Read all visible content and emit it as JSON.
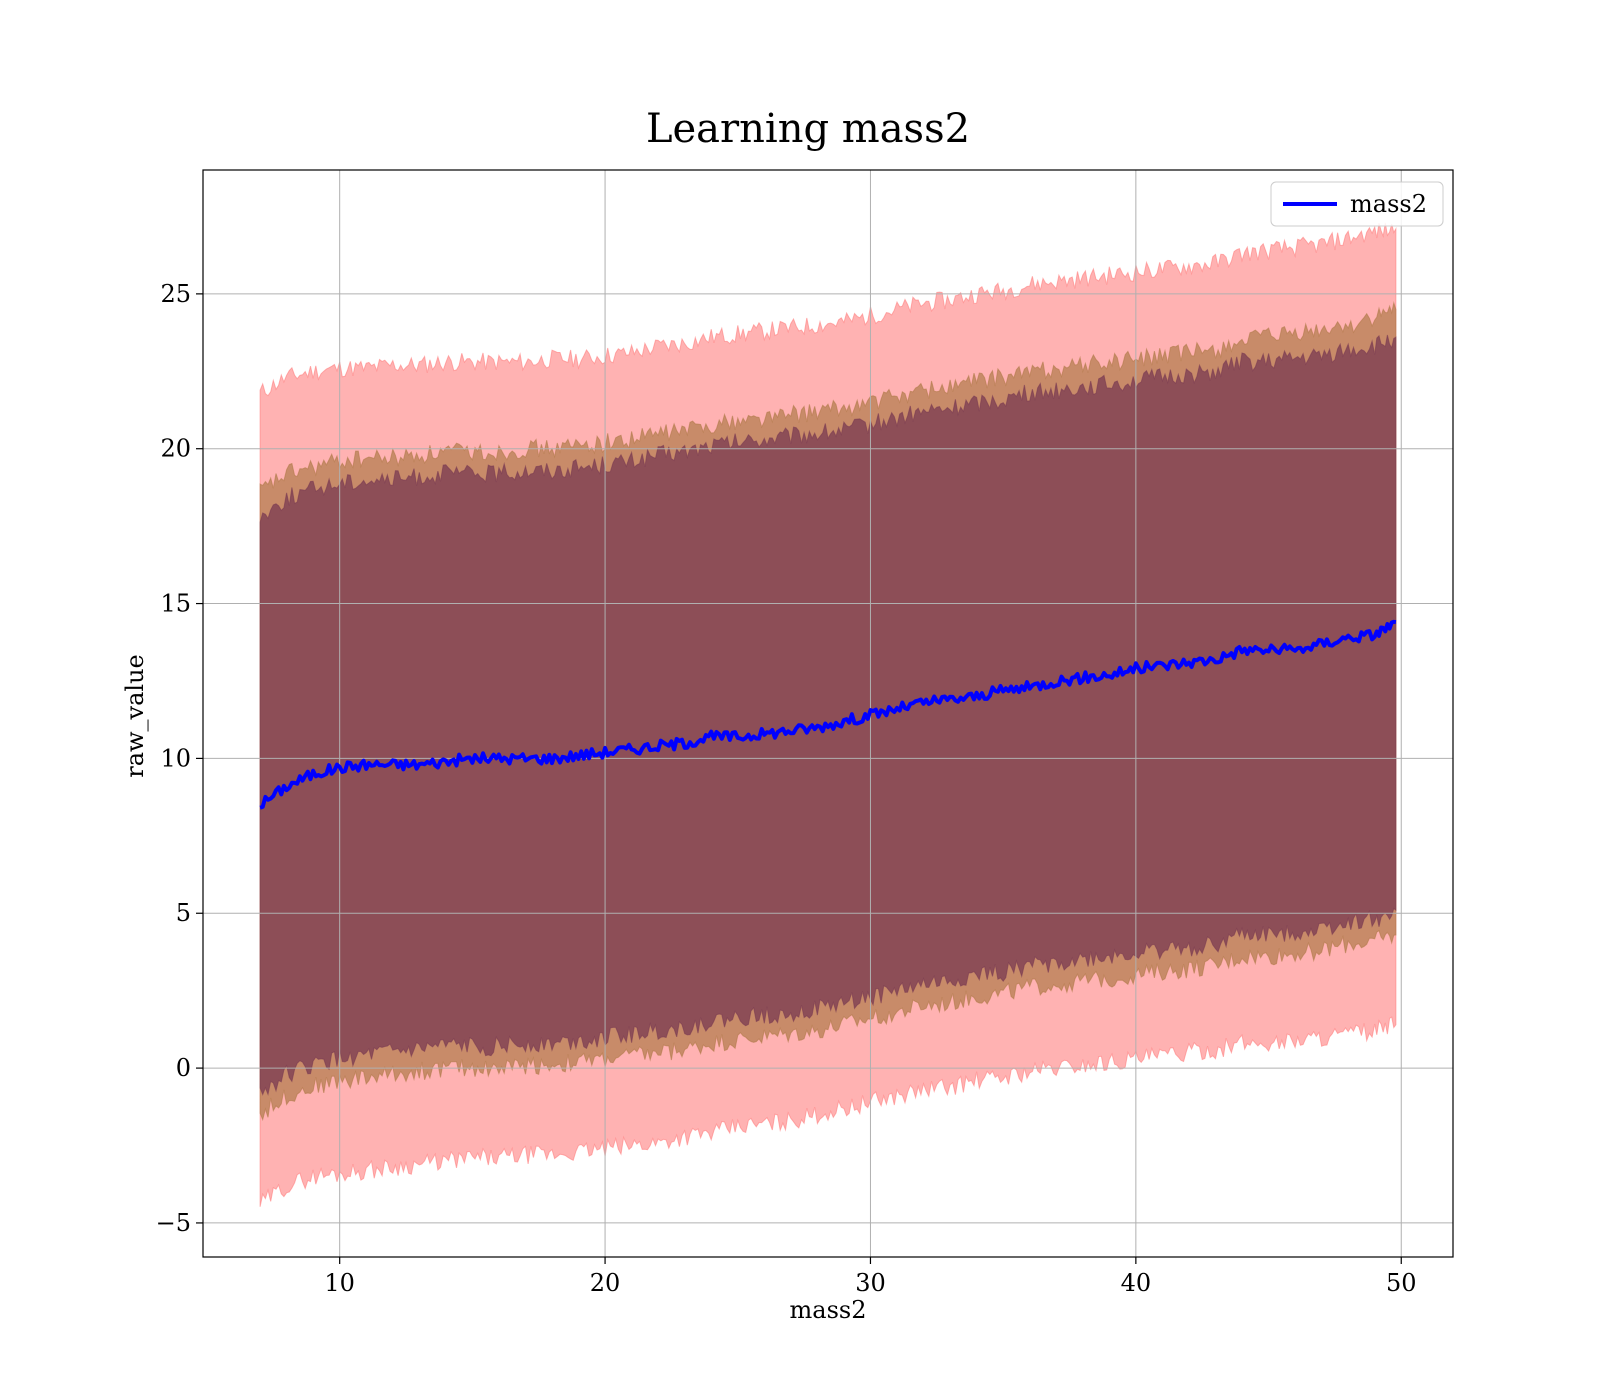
{
  "chart_data": {
    "type": "line",
    "title": "Learning mass2",
    "xlabel": "mass2",
    "ylabel": "raw_value",
    "xlim": [
      4.85,
      51.95
    ],
    "ylim": [
      -6.1,
      29.0
    ],
    "xticks": [
      10,
      20,
      30,
      40,
      50
    ],
    "yticks": [
      -5,
      0,
      5,
      10,
      15,
      20,
      25
    ],
    "xtick_labels": [
      "10",
      "20",
      "30",
      "40",
      "50"
    ],
    "ytick_labels": [
      "−5",
      "0",
      "5",
      "10",
      "15",
      "20",
      "25"
    ],
    "grid": true,
    "legend_position": "top-right",
    "x": [
      7.0,
      8.0,
      9.0,
      10.0,
      11.0,
      12.0,
      13.0,
      14.0,
      15.0,
      16.0,
      17.0,
      18.0,
      19.0,
      20.0,
      21.0,
      22.0,
      23.0,
      24.0,
      25.0,
      26.0,
      27.0,
      28.0,
      29.0,
      30.0,
      31.0,
      32.0,
      33.0,
      34.0,
      35.0,
      36.0,
      37.0,
      38.0,
      39.0,
      40.0,
      41.0,
      42.0,
      43.0,
      44.0,
      45.0,
      46.0,
      47.0,
      48.0,
      49.0,
      49.8
    ],
    "series": [
      {
        "name": "mass2",
        "color": "#0000ff",
        "values": [
          8.5,
          9.1,
          9.5,
          9.7,
          9.8,
          9.8,
          9.8,
          9.9,
          10.0,
          10.0,
          10.0,
          10.0,
          10.1,
          10.2,
          10.3,
          10.4,
          10.5,
          10.7,
          10.7,
          10.8,
          10.9,
          11.0,
          11.2,
          11.4,
          11.6,
          11.8,
          11.9,
          12.0,
          12.2,
          12.3,
          12.5,
          12.6,
          12.7,
          12.9,
          13.0,
          13.1,
          13.2,
          13.5,
          13.5,
          13.5,
          13.7,
          13.9,
          14.0,
          14.4
        ]
      }
    ],
    "bands": [
      {
        "color": "#ff7f7f",
        "upper": [
          21.8,
          22.3,
          22.5,
          22.6,
          22.6,
          22.7,
          22.7,
          22.8,
          22.8,
          22.8,
          22.8,
          22.9,
          22.9,
          23.0,
          23.1,
          23.3,
          23.4,
          23.6,
          23.7,
          23.8,
          23.9,
          24.0,
          24.1,
          24.3,
          24.5,
          24.7,
          24.8,
          25.0,
          25.1,
          25.3,
          25.4,
          25.5,
          25.6,
          25.7,
          25.8,
          25.9,
          26.0,
          26.3,
          26.4,
          26.5,
          26.6,
          26.8,
          27.0,
          27.1
        ],
        "lower": [
          -4.4,
          -3.8,
          -3.5,
          -3.4,
          -3.3,
          -3.2,
          -3.1,
          -3.0,
          -2.9,
          -2.9,
          -2.8,
          -2.8,
          -2.7,
          -2.6,
          -2.5,
          -2.4,
          -2.2,
          -2.1,
          -1.9,
          -1.8,
          -1.7,
          -1.5,
          -1.3,
          -1.1,
          -0.9,
          -0.7,
          -0.6,
          -0.4,
          -0.3,
          -0.1,
          0.0,
          0.1,
          0.2,
          0.3,
          0.4,
          0.5,
          0.6,
          0.8,
          0.8,
          0.9,
          1.0,
          1.1,
          1.2,
          1.4
        ]
      },
      {
        "color": "#b07a4a",
        "upper": [
          18.6,
          19.2,
          19.4,
          19.6,
          19.7,
          19.7,
          19.8,
          19.9,
          19.9,
          19.9,
          20.0,
          20.0,
          20.1,
          20.2,
          20.3,
          20.5,
          20.6,
          20.8,
          20.9,
          21.0,
          21.1,
          21.2,
          21.3,
          21.5,
          21.7,
          21.9,
          22.0,
          22.2,
          22.3,
          22.5,
          22.6,
          22.7,
          22.8,
          22.9,
          23.0,
          23.1,
          23.2,
          23.5,
          23.6,
          23.7,
          23.8,
          24.0,
          24.2,
          24.5
        ],
        "lower": [
          -1.5,
          -0.9,
          -0.6,
          -0.4,
          -0.3,
          -0.2,
          -0.1,
          0.0,
          0.0,
          0.0,
          0.1,
          0.1,
          0.2,
          0.3,
          0.4,
          0.5,
          0.6,
          0.8,
          0.9,
          1.0,
          1.1,
          1.2,
          1.4,
          1.6,
          1.8,
          2.0,
          2.1,
          2.3,
          2.4,
          2.6,
          2.7,
          2.8,
          2.9,
          3.0,
          3.1,
          3.2,
          3.3,
          3.6,
          3.6,
          3.7,
          3.8,
          4.0,
          4.1,
          4.3
        ]
      },
      {
        "color": "#7a3a52",
        "upper": [
          17.8,
          18.4,
          18.7,
          18.9,
          19.0,
          19.0,
          19.1,
          19.2,
          19.2,
          19.2,
          19.3,
          19.3,
          19.4,
          19.5,
          19.6,
          19.8,
          19.9,
          20.1,
          20.2,
          20.3,
          20.4,
          20.5,
          20.6,
          20.8,
          21.0,
          21.2,
          21.3,
          21.5,
          21.6,
          21.8,
          21.9,
          22.0,
          22.1,
          22.2,
          22.3,
          22.4,
          22.5,
          22.8,
          22.8,
          22.9,
          23.0,
          23.2,
          23.3,
          23.6
        ],
        "lower": [
          -0.8,
          -0.2,
          0.1,
          0.3,
          0.4,
          0.5,
          0.6,
          0.7,
          0.7,
          0.7,
          0.8,
          0.8,
          0.9,
          1.0,
          1.1,
          1.2,
          1.3,
          1.5,
          1.6,
          1.7,
          1.8,
          1.9,
          2.1,
          2.3,
          2.5,
          2.7,
          2.8,
          3.0,
          3.1,
          3.3,
          3.4,
          3.5,
          3.6,
          3.7,
          3.8,
          3.9,
          4.0,
          4.3,
          4.3,
          4.4,
          4.5,
          4.7,
          4.8,
          5.1
        ]
      }
    ]
  }
}
